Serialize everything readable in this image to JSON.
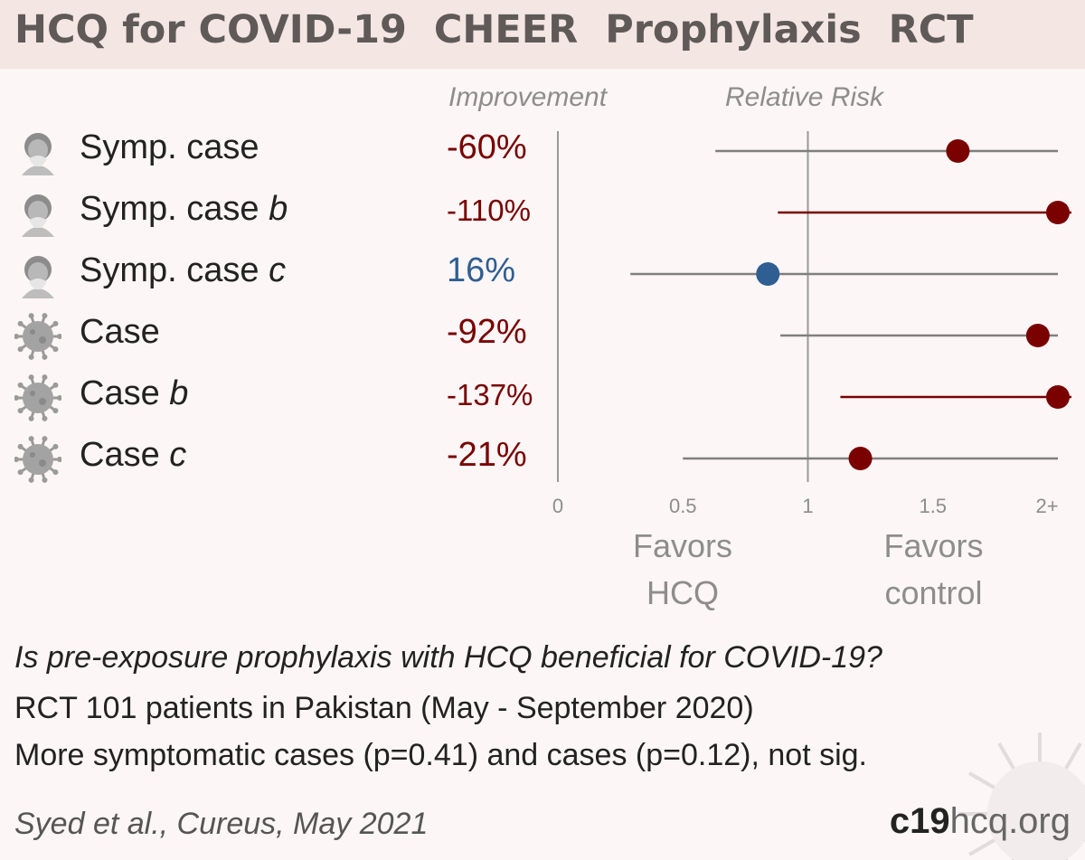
{
  "title": "HCQ for COVID-19  CHEER  Prophylaxis  RCT",
  "headers": {
    "improvement": "Improvement",
    "relative_risk": "Relative Risk"
  },
  "colors": {
    "harm": "#7a0000",
    "benefit": "#2f5e92",
    "axis": "#8a8a8a"
  },
  "chart_data": {
    "type": "forest",
    "x_axis": {
      "ticks": [
        "0",
        "0.5",
        "1",
        "1.5",
        "2+"
      ],
      "range": [
        0,
        2
      ],
      "reference": 1
    },
    "rows": [
      {
        "icon": "symptomatic-person-icon",
        "label": "Symp. case",
        "suffix": "",
        "improvement": "-60%",
        "rr": 1.6,
        "ci": [
          0.63,
          2.0
        ],
        "ci_open_right": true,
        "color": "harm",
        "small": false
      },
      {
        "icon": "symptomatic-person-icon",
        "label": "Symp. case ",
        "suffix": "b",
        "improvement": "-110%",
        "rr": 2.1,
        "ci": [
          0.88,
          2.0
        ],
        "ci_open_right": false,
        "color": "harm",
        "small": true
      },
      {
        "icon": "symptomatic-person-icon",
        "label": "Symp. case ",
        "suffix": "c",
        "improvement": "16%",
        "rr": 0.84,
        "ci": [
          0.29,
          2.0
        ],
        "ci_open_right": true,
        "color": "benefit",
        "small": false
      },
      {
        "icon": "virus-icon",
        "label": "Case",
        "suffix": "",
        "improvement": "-92%",
        "rr": 1.92,
        "ci": [
          0.89,
          2.0
        ],
        "ci_open_right": true,
        "color": "harm",
        "small": false
      },
      {
        "icon": "virus-icon",
        "label": "Case ",
        "suffix": "b",
        "improvement": "-137%",
        "rr": 2.37,
        "ci": [
          1.13,
          2.0
        ],
        "ci_open_right": false,
        "color": "harm",
        "small": true
      },
      {
        "icon": "virus-icon",
        "label": "Case ",
        "suffix": "c",
        "improvement": "-21%",
        "rr": 1.21,
        "ci": [
          0.5,
          2.0
        ],
        "ci_open_right": true,
        "color": "harm",
        "small": false
      }
    ]
  },
  "favors": {
    "left": "Favors\nHCQ",
    "right": "Favors\ncontrol"
  },
  "footer": {
    "question": "Is pre-exposure prophylaxis with HCQ beneficial for COVID-19?",
    "design": "RCT 101 patients in Pakistan (May - September 2020)",
    "result": "More symptomatic cases (p=0.41) and cases (p=0.12), not sig.",
    "citation": "Syed et al., Cureus, May 2021",
    "brand_bold": "c19",
    "brand_rest": "hcq.org"
  }
}
